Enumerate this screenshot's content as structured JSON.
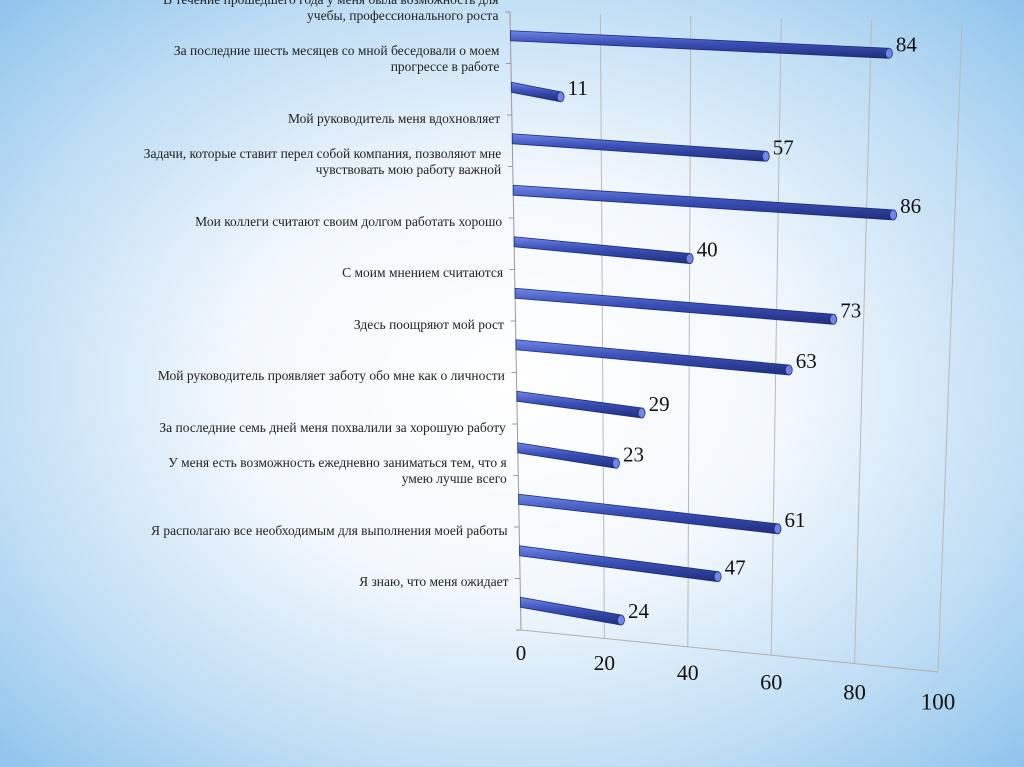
{
  "chart_data": {
    "type": "bar",
    "orientation": "horizontal",
    "categories": [
      "В течение прошедшего года у меня была возможность для учебы, профессионального роста",
      "За последние шесть месяцев со мной беседовали о моем прогрессе в работе",
      "Мой руководитель меня вдохновляет",
      "Задачи, которые ставит перел собой компания, позволяют  мне чувствовать мою работу важной",
      "Мои коллеги считают своим долгом работать хорошо",
      "С моим мнением считаются",
      "Здесь поощряют мой  рост",
      "Мой руководитель проявляет заботу обо мне как о личности",
      "За последние семь дней меня похвалили за хорошую работу",
      "У меня есть возможность ежедневно заниматься тем, что я умею лучше всего",
      "Я располагаю все необходимым для выполнения моей работы",
      "Я знаю, что меня ожидает"
    ],
    "category_lines": [
      [
        "В течение прошедшего года у меня была возможность для",
        "учебы, профессионального роста"
      ],
      [
        "За последние шесть месяцев со мной беседовали о моем",
        "прогрессе в работе"
      ],
      [
        "Мой руководитель меня вдохновляет"
      ],
      [
        "Задачи, которые ставит перел собой компания, позволяют  мне",
        "чувствовать мою работу важной"
      ],
      [
        "Мои коллеги считают своим долгом работать хорошо"
      ],
      [
        "С моим мнением считаются"
      ],
      [
        "Здесь поощряют мой  рост"
      ],
      [
        "Мой руководитель проявляет заботу обо мне как о личности"
      ],
      [
        "За последние семь дней меня похвалили за хорошую работу"
      ],
      [
        "У меня есть возможность ежедневно заниматься тем, что я",
        "умею лучше всего"
      ],
      [
        "Я располагаю все необходимым для выполнения моей работы"
      ],
      [
        "Я знаю, что меня ожидает"
      ]
    ],
    "values": [
      84,
      11,
      57,
      86,
      40,
      73,
      63,
      29,
      23,
      61,
      47,
      24
    ],
    "x_ticks": [
      "0",
      "20",
      "40",
      "60",
      "80",
      "100"
    ],
    "xlim": [
      0,
      100
    ],
    "grid": true,
    "legend": "none",
    "style": "3d-perspective-cylinders",
    "bar_color": "#3b50b8",
    "bar_highlight": "#6f86e6",
    "bar_dark": "#1f2d7a"
  }
}
